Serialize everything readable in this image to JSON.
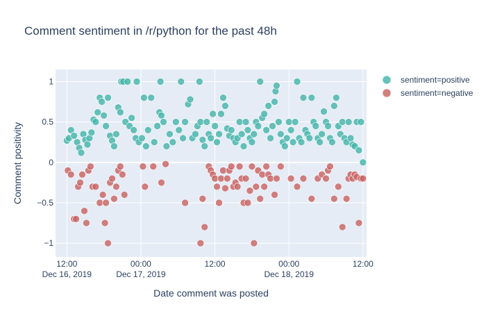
{
  "chart_data": {
    "type": "scatter",
    "title": "Comment sentiment in /r/python for the past 48h",
    "xlabel": "Date comment was posted",
    "ylabel": "Comment positivity",
    "xlim": [
      "2019-12-16T10:10",
      "2019-12-18T12:35"
    ],
    "ylim": [
      -1.17,
      1.15
    ],
    "x_ticks": [
      {
        "at": "2019-12-16T12:00",
        "label": "12:00",
        "sublabel": "Dec 16, 2019"
      },
      {
        "at": "2019-12-17T00:00",
        "label": "00:00",
        "sublabel": "Dec 17, 2019"
      },
      {
        "at": "2019-12-17T12:00",
        "label": "12:00",
        "sublabel": ""
      },
      {
        "at": "2019-12-18T00:00",
        "label": "00:00",
        "sublabel": "Dec 18, 2019"
      },
      {
        "at": "2019-12-18T12:00",
        "label": "12:00",
        "sublabel": ""
      }
    ],
    "y_ticks": [
      {
        "at": 1,
        "label": "1"
      },
      {
        "at": 0.5,
        "label": "0.5"
      },
      {
        "at": 0,
        "label": "0"
      },
      {
        "at": -0.5,
        "label": "−0.5"
      },
      {
        "at": -1,
        "label": "−1"
      }
    ],
    "grid": true,
    "legend": "top-right",
    "series": [
      {
        "name": "sentiment=positive",
        "color": "#45b5aa",
        "points": [
          [
            "2019-12-16T12:00",
            0.27
          ],
          [
            "2019-12-16T12:20",
            0.3
          ],
          [
            "2019-12-16T12:40",
            0.4
          ],
          [
            "2019-12-16T13:10",
            0.33
          ],
          [
            "2019-12-16T13:40",
            0.25
          ],
          [
            "2019-12-16T14:00",
            0.18
          ],
          [
            "2019-12-16T14:20",
            0.12
          ],
          [
            "2019-12-16T14:40",
            0.35
          ],
          [
            "2019-12-16T15:00",
            0.28
          ],
          [
            "2019-12-16T15:20",
            0.22
          ],
          [
            "2019-12-16T15:40",
            0.3
          ],
          [
            "2019-12-16T16:00",
            0.37
          ],
          [
            "2019-12-16T16:20",
            0.53
          ],
          [
            "2019-12-16T16:40",
            0.5
          ],
          [
            "2019-12-16T17:00",
            0.62
          ],
          [
            "2019-12-16T17:20",
            0.8
          ],
          [
            "2019-12-16T17:40",
            0.75
          ],
          [
            "2019-12-16T18:00",
            0.58
          ],
          [
            "2019-12-16T18:20",
            0.45
          ],
          [
            "2019-12-16T18:40",
            0.8
          ],
          [
            "2019-12-16T19:00",
            0.33
          ],
          [
            "2019-12-16T19:20",
            0.27
          ],
          [
            "2019-12-16T19:40",
            0.2
          ],
          [
            "2019-12-16T20:00",
            0.35
          ],
          [
            "2019-12-16T20:20",
            0.68
          ],
          [
            "2019-12-16T20:40",
            0.62
          ],
          [
            "2019-12-16T20:50",
            1
          ],
          [
            "2019-12-16T21:10",
            1
          ],
          [
            "2019-12-16T21:30",
            0.5
          ],
          [
            "2019-12-16T21:50",
            1
          ],
          [
            "2019-12-16T22:10",
            0.45
          ],
          [
            "2019-12-16T22:30",
            0.55
          ],
          [
            "2019-12-16T22:50",
            0.4
          ],
          [
            "2019-12-16T23:10",
            0.3
          ],
          [
            "2019-12-16T23:20",
            1
          ],
          [
            "2019-12-16T23:40",
            0.25
          ],
          [
            "2019-12-17T00:10",
            0.3
          ],
          [
            "2019-12-17T00:30",
            0.8
          ],
          [
            "2019-12-17T00:50",
            0.2
          ],
          [
            "2019-12-17T01:10",
            0.4
          ],
          [
            "2019-12-17T01:40",
            0.8
          ],
          [
            "2019-12-17T02:10",
            0.25
          ],
          [
            "2019-12-17T02:40",
            0.45
          ],
          [
            "2019-12-17T03:00",
            0.62
          ],
          [
            "2019-12-17T03:10",
            1
          ],
          [
            "2019-12-17T03:20",
            0.58
          ],
          [
            "2019-12-17T03:40",
            0.5
          ],
          [
            "2019-12-17T04:10",
            0.2
          ],
          [
            "2019-12-17T04:40",
            0.35
          ],
          [
            "2019-12-17T05:10",
            0.25
          ],
          [
            "2019-12-17T05:40",
            0.5
          ],
          [
            "2019-12-17T06:10",
            0.4
          ],
          [
            "2019-12-17T06:30",
            1
          ],
          [
            "2019-12-17T06:50",
            0.3
          ],
          [
            "2019-12-17T07:10",
            0.5
          ],
          [
            "2019-12-17T07:40",
            0.72
          ],
          [
            "2019-12-17T08:00",
            0.78
          ],
          [
            "2019-12-17T08:20",
            0.3
          ],
          [
            "2019-12-17T08:50",
            0.35
          ],
          [
            "2019-12-17T09:10",
            0.45
          ],
          [
            "2019-12-17T09:30",
            1
          ],
          [
            "2019-12-17T09:40",
            0.5
          ],
          [
            "2019-12-17T10:00",
            0.28
          ],
          [
            "2019-12-17T10:20",
            0.2
          ],
          [
            "2019-12-17T10:40",
            0.5
          ],
          [
            "2019-12-17T11:00",
            0.35
          ],
          [
            "2019-12-17T11:20",
            0.3
          ],
          [
            "2019-12-17T11:40",
            0.6
          ],
          [
            "2019-12-17T12:00",
            0.45
          ],
          [
            "2019-12-17T12:20",
            0.25
          ],
          [
            "2019-12-17T12:40",
            0.35
          ],
          [
            "2019-12-17T13:00",
            0.6
          ],
          [
            "2019-12-17T13:20",
            0.8
          ],
          [
            "2019-12-17T13:40",
            0.7
          ],
          [
            "2019-12-17T14:00",
            0.42
          ],
          [
            "2019-12-17T14:20",
            0.33
          ],
          [
            "2019-12-17T14:40",
            0.4
          ],
          [
            "2019-12-17T15:00",
            0.3
          ],
          [
            "2019-12-17T15:20",
            0.25
          ],
          [
            "2019-12-17T15:40",
            0.3
          ],
          [
            "2019-12-17T16:00",
            0.5
          ],
          [
            "2019-12-17T16:20",
            0.35
          ],
          [
            "2019-12-17T16:40",
            0.2
          ],
          [
            "2019-12-17T17:00",
            0.5
          ],
          [
            "2019-12-17T17:20",
            0.4
          ],
          [
            "2019-12-17T17:40",
            0.3
          ],
          [
            "2019-12-17T18:00",
            0.25
          ],
          [
            "2019-12-17T18:20",
            0.35
          ],
          [
            "2019-12-17T18:40",
            0.5
          ],
          [
            "2019-12-17T19:00",
            0.45
          ],
          [
            "2019-12-17T19:20",
            1
          ],
          [
            "2019-12-17T19:40",
            0.55
          ],
          [
            "2019-12-17T20:00",
            0.6
          ],
          [
            "2019-12-17T20:20",
            0.4
          ],
          [
            "2019-12-17T20:40",
            0.7
          ],
          [
            "2019-12-17T21:00",
            0.3
          ],
          [
            "2019-12-17T21:20",
            0.45
          ],
          [
            "2019-12-17T21:40",
            0.75
          ],
          [
            "2019-12-17T21:50",
            0.88
          ],
          [
            "2019-12-17T22:00",
            0.95
          ],
          [
            "2019-12-17T22:20",
            0.5
          ],
          [
            "2019-12-17T22:40",
            0.35
          ],
          [
            "2019-12-17T23:00",
            0.25
          ],
          [
            "2019-12-17T23:20",
            0.2
          ],
          [
            "2019-12-17T23:40",
            0.3
          ],
          [
            "2019-12-18T00:00",
            0.5
          ],
          [
            "2019-12-18T00:20",
            0.4
          ],
          [
            "2019-12-18T00:40",
            0.25
          ],
          [
            "2019-12-18T01:00",
            0.5
          ],
          [
            "2019-12-18T01:20",
            1
          ],
          [
            "2019-12-18T01:40",
            0.3
          ],
          [
            "2019-12-18T02:00",
            0.25
          ],
          [
            "2019-12-18T02:20",
            0.8
          ],
          [
            "2019-12-18T02:40",
            0.4
          ],
          [
            "2019-12-18T03:00",
            0.35
          ],
          [
            "2019-12-18T03:20",
            0.3
          ],
          [
            "2019-12-18T03:40",
            0.8
          ],
          [
            "2019-12-18T04:00",
            0.5
          ],
          [
            "2019-12-18T04:20",
            0.45
          ],
          [
            "2019-12-18T04:40",
            0.3
          ],
          [
            "2019-12-18T05:00",
            0.25
          ],
          [
            "2019-12-18T05:20",
            0.35
          ],
          [
            "2019-12-18T05:40",
            0.63
          ],
          [
            "2019-12-18T06:00",
            0.5
          ],
          [
            "2019-12-18T06:20",
            0.45
          ],
          [
            "2019-12-18T06:40",
            0.3
          ],
          [
            "2019-12-18T07:00",
            0.25
          ],
          [
            "2019-12-18T07:20",
            0.7
          ],
          [
            "2019-12-18T07:40",
            0.8
          ],
          [
            "2019-12-18T08:00",
            0.45
          ],
          [
            "2019-12-18T08:20",
            0.35
          ],
          [
            "2019-12-18T08:40",
            0.5
          ],
          [
            "2019-12-18T09:00",
            0.3
          ],
          [
            "2019-12-18T09:20",
            0.25
          ],
          [
            "2019-12-18T09:40",
            0.5
          ],
          [
            "2019-12-18T10:00",
            0.3
          ],
          [
            "2019-12-18T10:20",
            0.22
          ],
          [
            "2019-12-18T10:40",
            0.2
          ],
          [
            "2019-12-18T11:00",
            0.5
          ],
          [
            "2019-12-18T11:20",
            0.15
          ],
          [
            "2019-12-18T11:40",
            0.5
          ],
          [
            "2019-12-18T12:00",
            0
          ]
        ]
      },
      {
        "name": "sentiment=negative",
        "color": "#c86463",
        "points": [
          [
            "2019-12-16T12:10",
            -0.1
          ],
          [
            "2019-12-16T12:40",
            -0.15
          ],
          [
            "2019-12-16T13:10",
            -0.7
          ],
          [
            "2019-12-16T13:30",
            -0.7
          ],
          [
            "2019-12-16T13:50",
            -0.3
          ],
          [
            "2019-12-16T14:10",
            -0.25
          ],
          [
            "2019-12-16T14:30",
            -0.15
          ],
          [
            "2019-12-16T14:50",
            -0.6
          ],
          [
            "2019-12-16T15:10",
            -0.75
          ],
          [
            "2019-12-16T15:30",
            -0.1
          ],
          [
            "2019-12-16T15:50",
            -0.05
          ],
          [
            "2019-12-16T16:10",
            -0.3
          ],
          [
            "2019-12-16T16:40",
            -0.3
          ],
          [
            "2019-12-16T17:20",
            -0.5
          ],
          [
            "2019-12-16T17:50",
            -0.4
          ],
          [
            "2019-12-16T18:10",
            -0.75
          ],
          [
            "2019-12-16T18:20",
            -0.5
          ],
          [
            "2019-12-16T18:40",
            -1
          ],
          [
            "2019-12-16T19:00",
            -0.25
          ],
          [
            "2019-12-16T19:20",
            -0.2
          ],
          [
            "2019-12-16T19:40",
            -0.45
          ],
          [
            "2019-12-16T20:00",
            -0.3
          ],
          [
            "2019-12-16T20:20",
            -0.1
          ],
          [
            "2019-12-16T20:40",
            -0.05
          ],
          [
            "2019-12-16T21:00",
            -0.15
          ],
          [
            "2019-12-16T21:20",
            -0.4
          ],
          [
            "2019-12-17T00:20",
            -0.05
          ],
          [
            "2019-12-17T00:40",
            -0.3
          ],
          [
            "2019-12-17T02:00",
            -0.05
          ],
          [
            "2019-12-17T03:20",
            -0.25
          ],
          [
            "2019-12-17T04:00",
            -0.02
          ],
          [
            "2019-12-17T07:10",
            -0.5
          ],
          [
            "2019-12-17T09:40",
            -1
          ],
          [
            "2019-12-17T10:00",
            -0.45
          ],
          [
            "2019-12-17T10:20",
            -0.8
          ],
          [
            "2019-12-17T11:00",
            -0.05
          ],
          [
            "2019-12-17T11:20",
            -0.1
          ],
          [
            "2019-12-17T11:40",
            -0.15
          ],
          [
            "2019-12-17T12:00",
            -0.2
          ],
          [
            "2019-12-17T12:20",
            -0.3
          ],
          [
            "2019-12-17T12:40",
            -0.5
          ],
          [
            "2019-12-17T13:00",
            -0.2
          ],
          [
            "2019-12-17T13:20",
            -0.1
          ],
          [
            "2019-12-17T13:40",
            -0.32
          ],
          [
            "2019-12-17T14:00",
            -0.2
          ],
          [
            "2019-12-17T14:20",
            -0.1
          ],
          [
            "2019-12-17T14:40",
            -0.05
          ],
          [
            "2019-12-17T15:00",
            -0.3
          ],
          [
            "2019-12-17T15:20",
            -0.25
          ],
          [
            "2019-12-17T15:40",
            -0.3
          ],
          [
            "2019-12-17T16:00",
            -0.05
          ],
          [
            "2019-12-17T16:20",
            -0.2
          ],
          [
            "2019-12-17T16:40",
            -0.5
          ],
          [
            "2019-12-17T17:00",
            -0.2
          ],
          [
            "2019-12-17T17:20",
            -0.5
          ],
          [
            "2019-12-17T17:40",
            -0.35
          ],
          [
            "2019-12-17T18:00",
            -0.05
          ],
          [
            "2019-12-17T18:20",
            -1
          ],
          [
            "2019-12-17T18:40",
            -0.3
          ],
          [
            "2019-12-17T19:00",
            -0.1
          ],
          [
            "2019-12-17T19:20",
            -0.45
          ],
          [
            "2019-12-17T19:40",
            -0.15
          ],
          [
            "2019-12-17T20:00",
            -0.3
          ],
          [
            "2019-12-17T20:20",
            -0.05
          ],
          [
            "2019-12-17T20:40",
            -0.15
          ],
          [
            "2019-12-17T21:00",
            -0.2
          ],
          [
            "2019-12-17T21:40",
            -0.4
          ],
          [
            "2019-12-17T22:00",
            -0.2
          ],
          [
            "2019-12-17T22:40",
            -0.05
          ],
          [
            "2019-12-18T00:20",
            -0.2
          ],
          [
            "2019-12-18T01:20",
            -0.3
          ],
          [
            "2019-12-18T02:20",
            -0.2
          ],
          [
            "2019-12-18T03:40",
            -0.45
          ],
          [
            "2019-12-18T04:40",
            -0.2
          ],
          [
            "2019-12-18T05:20",
            -0.15
          ],
          [
            "2019-12-18T06:00",
            -0.2
          ],
          [
            "2019-12-18T06:20",
            -0.1
          ],
          [
            "2019-12-18T06:40",
            -0.05
          ],
          [
            "2019-12-18T07:20",
            -0.45
          ],
          [
            "2019-12-18T08:00",
            -0.3
          ],
          [
            "2019-12-18T08:40",
            -0.8
          ],
          [
            "2019-12-18T09:20",
            -0.45
          ],
          [
            "2019-12-18T09:40",
            -0.2
          ],
          [
            "2019-12-18T10:00",
            -0.15
          ],
          [
            "2019-12-18T10:20",
            -0.2
          ],
          [
            "2019-12-18T10:40",
            -0.15
          ],
          [
            "2019-12-18T11:00",
            -0.18
          ],
          [
            "2019-12-18T11:20",
            -0.75
          ],
          [
            "2019-12-18T11:40",
            -0.2
          ],
          [
            "2019-12-18T12:00",
            -0.2
          ]
        ]
      }
    ]
  }
}
